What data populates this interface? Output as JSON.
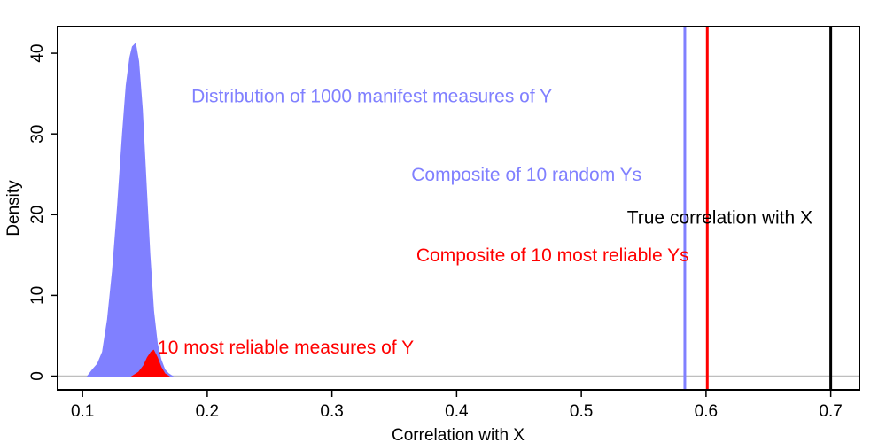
{
  "chart_data": {
    "type": "area",
    "xlabel": "Correlation with X",
    "ylabel": "Density",
    "xlim": [
      0.08,
      0.723
    ],
    "ylim": [
      -1.7,
      43.3
    ],
    "x_ticks": [
      "0.1",
      "0.2",
      "0.3",
      "0.4",
      "0.5",
      "0.6",
      "0.7"
    ],
    "y_ticks": [
      "0",
      "10",
      "20",
      "30",
      "40"
    ],
    "baseline_y": 0,
    "series": [
      {
        "name": "Distribution of 1000 manifest measures of Y",
        "color": "#8080ff",
        "x": [
          0.104,
          0.108,
          0.112,
          0.116,
          0.12,
          0.124,
          0.128,
          0.132,
          0.135,
          0.138,
          0.14,
          0.1425,
          0.145,
          0.148,
          0.151,
          0.154,
          0.157,
          0.16,
          0.163,
          0.166,
          0.169,
          0.172
        ],
        "y": [
          0.0,
          0.8,
          1.5,
          3.0,
          7.0,
          13.0,
          21.0,
          30.0,
          36.0,
          39.5,
          40.8,
          41.2,
          39.0,
          33.0,
          24.0,
          15.0,
          8.0,
          4.0,
          2.0,
          0.8,
          0.3,
          0.0
        ]
      },
      {
        "name": "10 most reliable measures of Y",
        "color": "#ff0000",
        "x": [
          0.14,
          0.145,
          0.149,
          0.152,
          0.155,
          0.157,
          0.16,
          0.163,
          0.166,
          0.169
        ],
        "y": [
          0.0,
          0.5,
          1.3,
          2.3,
          3.0,
          3.2,
          2.3,
          1.1,
          0.3,
          0.0
        ]
      }
    ],
    "reference_lines": [
      {
        "name": "Composite of 10 random Ys",
        "x": 0.583,
        "color": "#8080ff"
      },
      {
        "name": "Composite of 10 most reliable Ys",
        "x": 0.601,
        "color": "#ff0000"
      },
      {
        "name": "True correlation with X",
        "x": 0.7,
        "color": "#000000"
      }
    ],
    "annotations": [
      {
        "text": "Distribution of 1000 manifest measures of Y",
        "x": 0.332,
        "y": 34.5,
        "color": "#8080ff"
      },
      {
        "text": "Composite of 10 random Ys",
        "x": 0.456,
        "y": 24.8,
        "color": "#8080ff"
      },
      {
        "text": "True correlation with X",
        "x": 0.611,
        "y": 19.5,
        "color": "#000000"
      },
      {
        "text": "Composite of 10 most reliable Ys",
        "x": 0.477,
        "y": 14.8,
        "color": "#ff0000"
      },
      {
        "text": "10 most reliable measures of Y",
        "x": 0.263,
        "y": 3.4,
        "color": "#ff0000"
      }
    ],
    "grid": false,
    "legend": "none"
  }
}
